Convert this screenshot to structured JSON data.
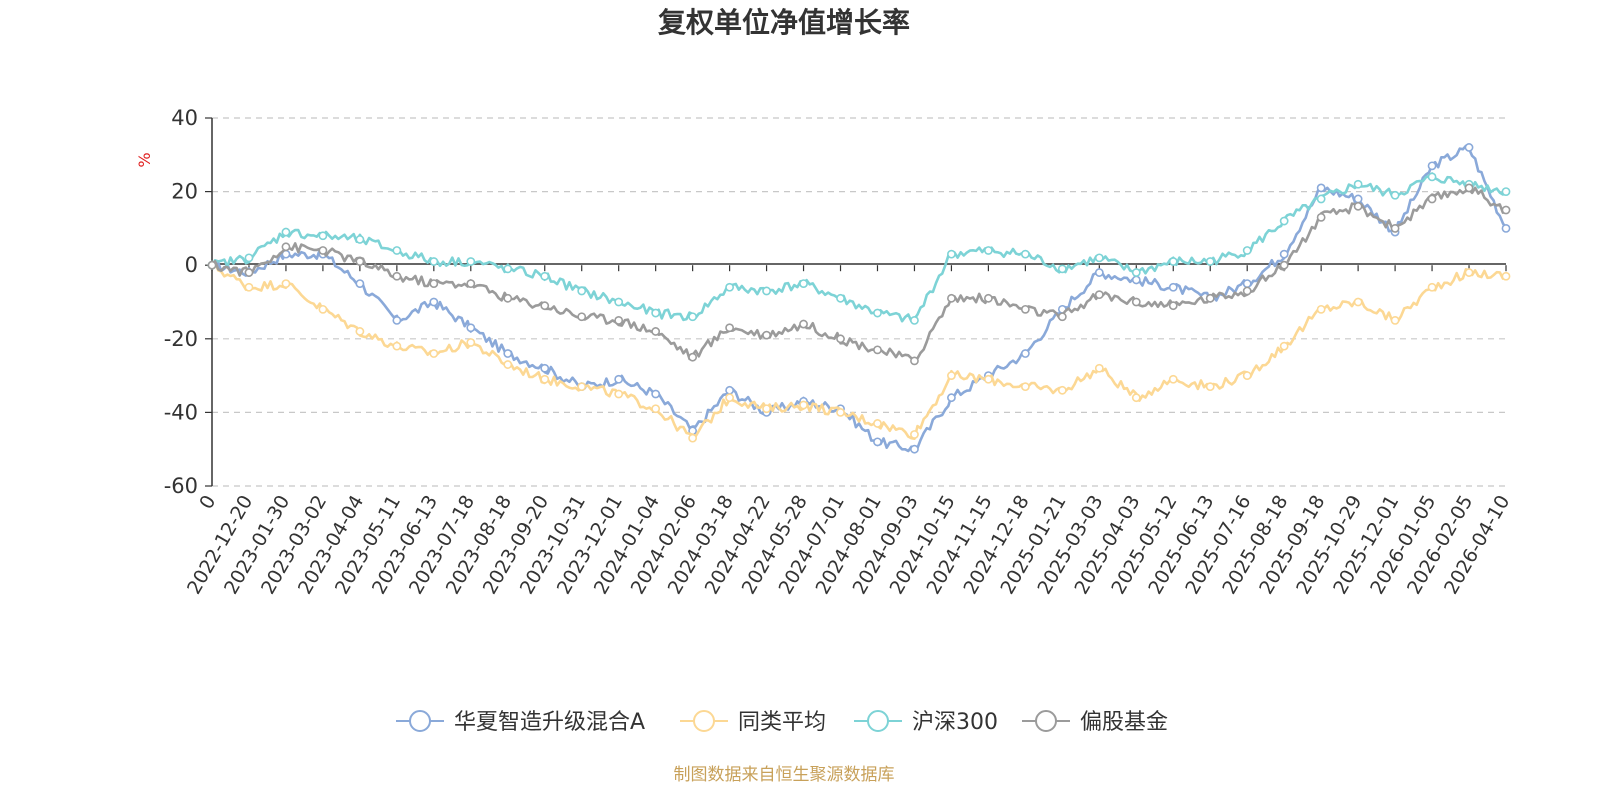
{
  "chart_data": {
    "type": "line",
    "title": "复权单位净值增长率",
    "ylabel": "%",
    "ylim": [
      -60,
      40
    ],
    "yticks": [
      "40",
      "20",
      "0",
      "-20",
      "-40",
      "-60"
    ],
    "ytick_values": [
      40,
      20,
      0,
      -20,
      -40,
      -60
    ],
    "grid": true,
    "legend_position": "bottom",
    "source": "制图数据来自恒生聚源数据库",
    "categories": [
      "0",
      "2022-12-20",
      "2023-01-30",
      "2023-03-02",
      "2023-04-04",
      "2023-05-11",
      "2023-06-13",
      "2023-07-18",
      "2023-08-18",
      "2023-09-20",
      "2023-10-31",
      "2023-12-01",
      "2024-01-04",
      "2024-02-06",
      "2024-03-18",
      "2024-04-22",
      "2024-05-28",
      "2024-07-01",
      "2024-08-01",
      "2024-09-03",
      "2024-10-15",
      "2024-11-15",
      "2024-12-18",
      "2025-01-21",
      "2025-03-03",
      "2025-04-03",
      "2025-05-12",
      "2025-06-13",
      "2025-07-16",
      "2025-08-18",
      "2025-09-18",
      "2025-10-29",
      "2025-12-01",
      "2026-01-05",
      "2026-02-05",
      "2026-04-10"
    ],
    "series": [
      {
        "name": "华夏智造升级混合A",
        "color": "#8aa9d9",
        "values": [
          0,
          -2,
          3,
          3,
          -5,
          -15,
          -10,
          -17,
          -24,
          -28,
          -33,
          -31,
          -35,
          -45,
          -34,
          -40,
          -37,
          -39,
          -48,
          -50,
          -36,
          -30,
          -24,
          -12,
          -2,
          -4,
          -6,
          -9,
          -5,
          3,
          21,
          18,
          9,
          27,
          32,
          10
        ]
      },
      {
        "name": "同类平均",
        "color": "#fcd894",
        "values": [
          0,
          -6,
          -5,
          -12,
          -18,
          -22,
          -24,
          -21,
          -27,
          -31,
          -33,
          -35,
          -39,
          -47,
          -36,
          -39,
          -38,
          -40,
          -43,
          -46,
          -30,
          -31,
          -33,
          -34,
          -28,
          -36,
          -31,
          -33,
          -30,
          -22,
          -12,
          -10,
          -15,
          -6,
          -2,
          -3
        ]
      },
      {
        "name": "沪深300",
        "color": "#7dd3d6",
        "values": [
          0,
          2,
          9,
          8,
          7,
          4,
          1,
          1,
          -1,
          -3,
          -7,
          -10,
          -13,
          -14,
          -6,
          -7,
          -5,
          -9,
          -13,
          -15,
          3,
          4,
          3,
          -1,
          2,
          -2,
          1,
          1,
          4,
          12,
          18,
          22,
          19,
          24,
          22,
          20
        ]
      },
      {
        "name": "偏股基金",
        "color": "#9b9b9b",
        "values": [
          0,
          -2,
          5,
          4,
          1,
          -3,
          -5,
          -5,
          -9,
          -11,
          -14,
          -15,
          -18,
          -25,
          -17,
          -19,
          -16,
          -20,
          -23,
          -26,
          -9,
          -9,
          -12,
          -14,
          -8,
          -10,
          -11,
          -9,
          -7,
          0,
          13,
          16,
          10,
          18,
          21,
          15
        ]
      }
    ]
  }
}
